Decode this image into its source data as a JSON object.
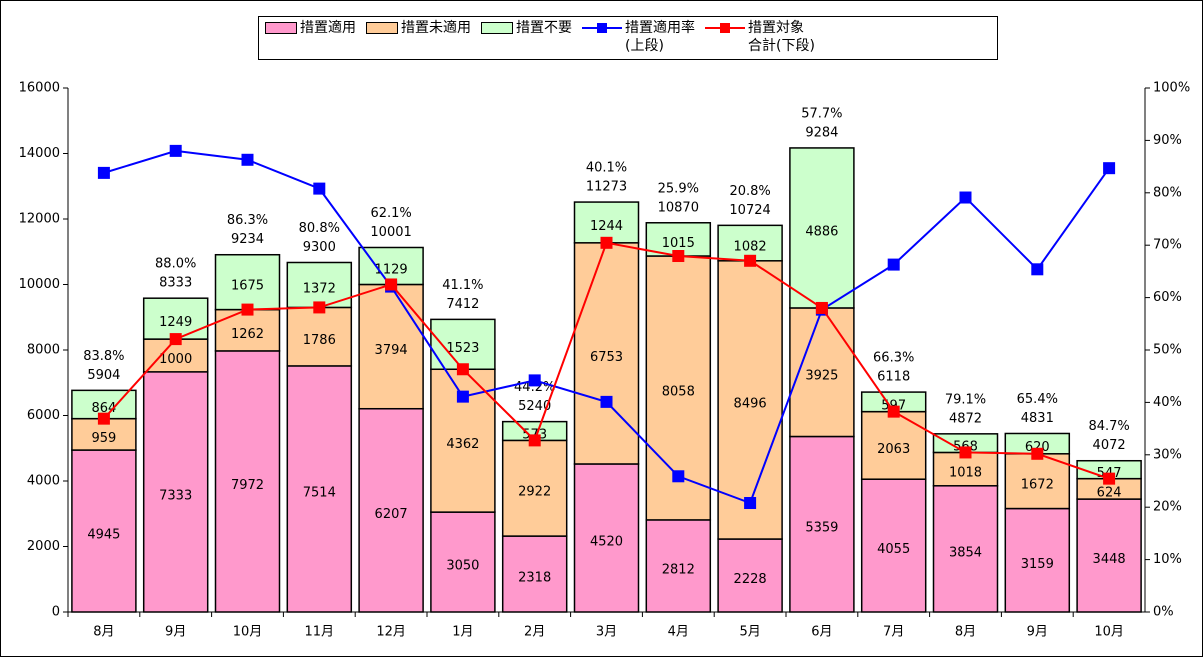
{
  "chart_data": {
    "type": "bar",
    "categories": [
      "8月",
      "9月",
      "10月",
      "11月",
      "12月",
      "1月",
      "2月",
      "3月",
      "4月",
      "5月",
      "6月",
      "7月",
      "8月",
      "9月",
      "10月"
    ],
    "series": [
      {
        "name": "措置適用",
        "type": "bar",
        "color": "#ff99cc",
        "values": [
          4945,
          7333,
          7972,
          7514,
          6207,
          3050,
          2318,
          4520,
          2812,
          2228,
          5359,
          4055,
          3854,
          3159,
          3448
        ]
      },
      {
        "name": "措置未適用",
        "type": "bar",
        "color": "#ffcc99",
        "values": [
          959,
          1000,
          1262,
          1786,
          3794,
          4362,
          2922,
          6753,
          8058,
          8496,
          3925,
          2063,
          1018,
          1672,
          624
        ]
      },
      {
        "name": "措置不要",
        "type": "bar",
        "color": "#ccffcc",
        "values": [
          864,
          1249,
          1675,
          1372,
          1129,
          1523,
          573,
          1244,
          1015,
          1082,
          4886,
          597,
          568,
          620,
          547
        ]
      },
      {
        "name": "措置適用率\n(上段)",
        "type": "line",
        "axis": "y2",
        "color": "#0000ff",
        "values": [
          83.8,
          88.0,
          86.3,
          80.8,
          62.1,
          41.1,
          44.2,
          40.1,
          25.9,
          20.8,
          57.7,
          66.3,
          79.1,
          65.4,
          84.7
        ],
        "value_labels": [
          "83.8%",
          "88.0%",
          "86.3%",
          "80.8%",
          "62.1%",
          "41.1%",
          "44.2%",
          "40.1%",
          "25.9%",
          "20.8%",
          "57.7%",
          "66.3%",
          "79.1%",
          "65.4%",
          "84.7%"
        ]
      },
      {
        "name": "措置対象\n合計(下段)",
        "type": "line",
        "color": "#ff0000",
        "values": [
          5904,
          8333,
          9234,
          9300,
          10001,
          7412,
          5240,
          11273,
          10870,
          10724,
          9284,
          6118,
          4872,
          4831,
          4072
        ]
      }
    ],
    "ylim": [
      0,
      16000
    ],
    "yticks": [
      0,
      2000,
      4000,
      6000,
      8000,
      10000,
      12000,
      14000,
      16000
    ],
    "y2lim": [
      0,
      100
    ],
    "y2ticks": [
      {
        "value": 0,
        "label": "0%"
      },
      {
        "value": 10,
        "label": "10%"
      },
      {
        "value": 20,
        "label": "20%"
      },
      {
        "value": 30,
        "label": "30%"
      },
      {
        "value": 40,
        "label": "40%"
      },
      {
        "value": 50,
        "label": "50%"
      },
      {
        "value": 60,
        "label": "60%"
      },
      {
        "value": 70,
        "label": "70%"
      },
      {
        "value": 80,
        "label": "80%"
      },
      {
        "value": 90,
        "label": "90%"
      },
      {
        "value": 100,
        "label": "100%"
      }
    ],
    "legend": "top"
  }
}
